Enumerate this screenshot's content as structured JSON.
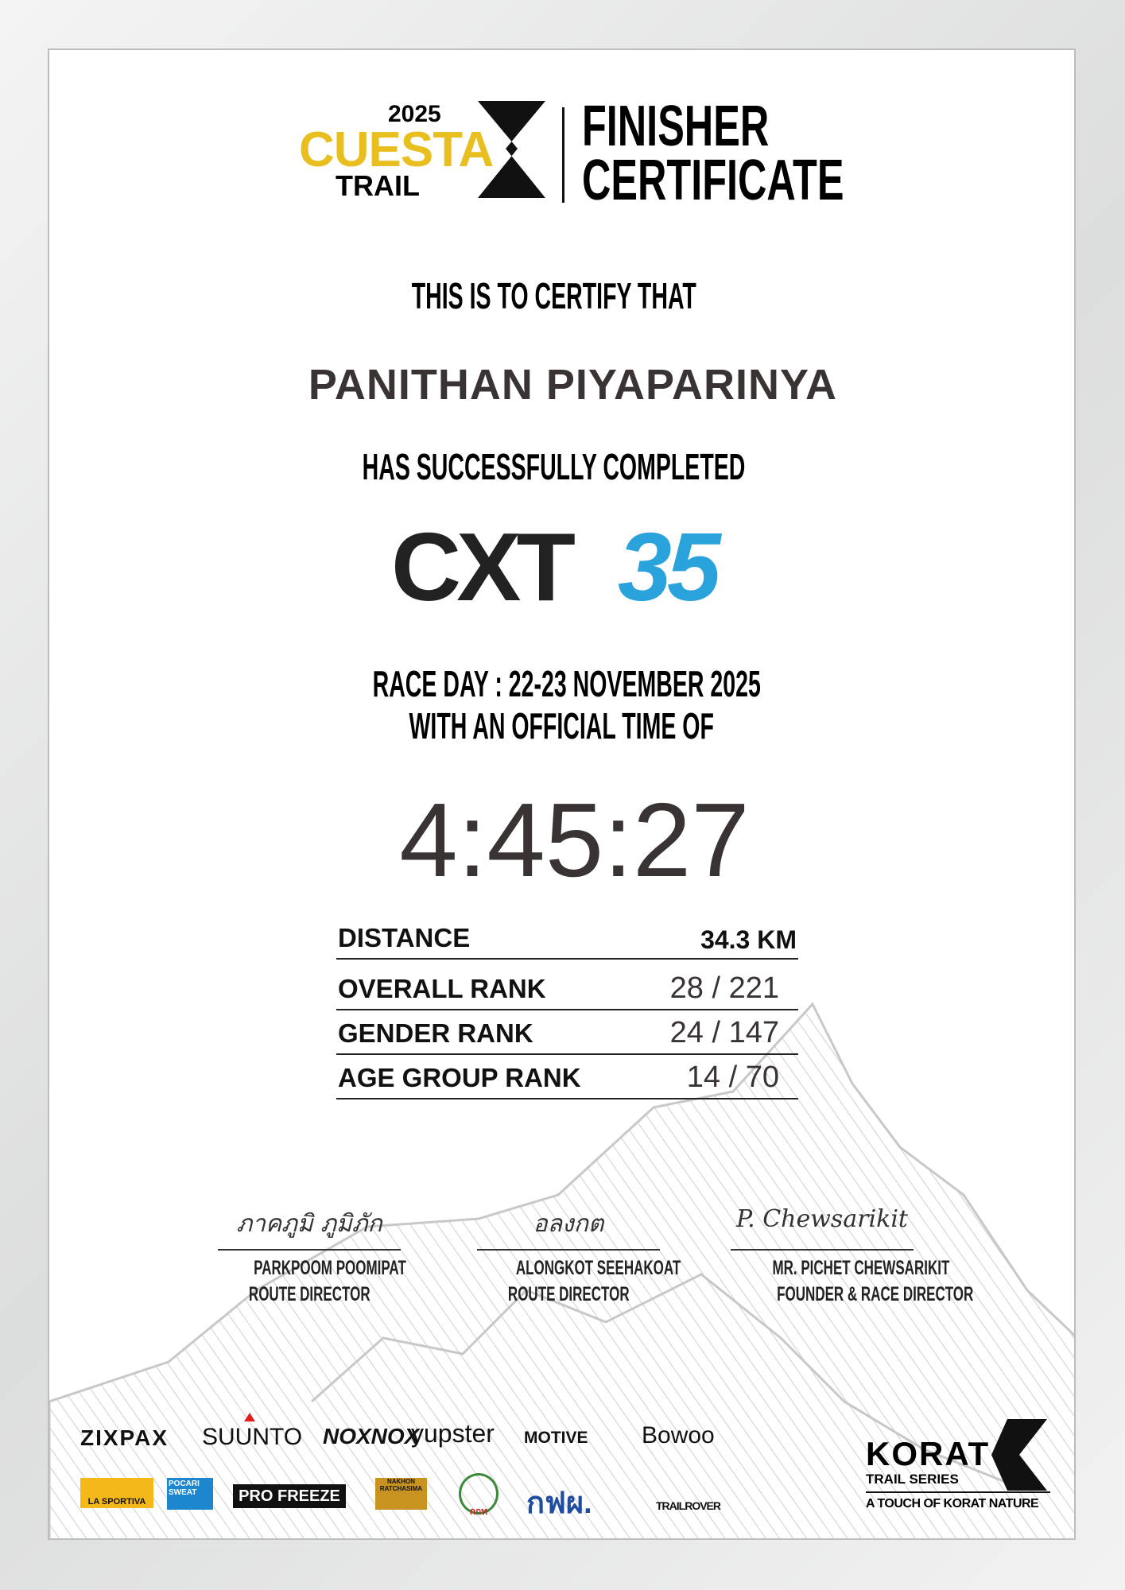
{
  "logo": {
    "year": "2025",
    "name": "CUESTA",
    "sub": "TRAIL"
  },
  "header": {
    "line1": "FINISHER",
    "line2": "CERTIFICATE"
  },
  "certify": "THIS IS TO CERTIFY THAT",
  "participant": "PANITHAN PIYAPARINYA",
  "completed": "HAS SUCCESSFULLY COMPLETED",
  "race": {
    "prefix": "CXT",
    "distance_code": "35",
    "accent": "#2aa3dc"
  },
  "race_day": "RACE DAY : 22-23 NOVEMBER 2025",
  "official_time_label": "WITH AN OFFICIAL TIME OF",
  "official_time": "4:45:27",
  "results": [
    {
      "label": "DISTANCE",
      "value": "34.3 KM"
    },
    {
      "label": "OVERALL RANK",
      "value": "28 / 221"
    },
    {
      "label": "GENDER RANK",
      "value": "24 / 147"
    },
    {
      "label": "AGE GROUP RANK",
      "value": "14 / 70"
    }
  ],
  "signatures": [
    {
      "signature": "ภาคภูมิ ภูมิภัก",
      "name": "PARKPOOM POOMIPAT",
      "title": "ROUTE DIRECTOR"
    },
    {
      "signature": "อลงกต",
      "name": "ALONGKOT SEEHAKOAT",
      "title": "ROUTE DIRECTOR"
    },
    {
      "signature": "P. Chewsarikit",
      "name": "MR. PICHET CHEWSARIKIT",
      "title": "FOUNDER & RACE DIRECTOR"
    }
  ],
  "sponsors_row1": [
    "ZIXPAX",
    "SUUNTO",
    "NOXNOX",
    "yupster",
    "MOTIVE",
    "Bowoo"
  ],
  "sponsors_row2": [
    "LA SPORTIVA",
    "POCARI SWEAT",
    "PRO FREEZE",
    "NAKHON RATCHASIMA",
    "กกท",
    "กฟผ.",
    "TRAILROVER"
  ],
  "korat": {
    "name": "KORAT",
    "series": "TRAIL SERIES",
    "tagline": "A TOUCH OF KORAT NATURE"
  },
  "colors": {
    "yellow": "#e8bf1f",
    "blue": "#2aa3dc",
    "text": "#3a3333"
  }
}
